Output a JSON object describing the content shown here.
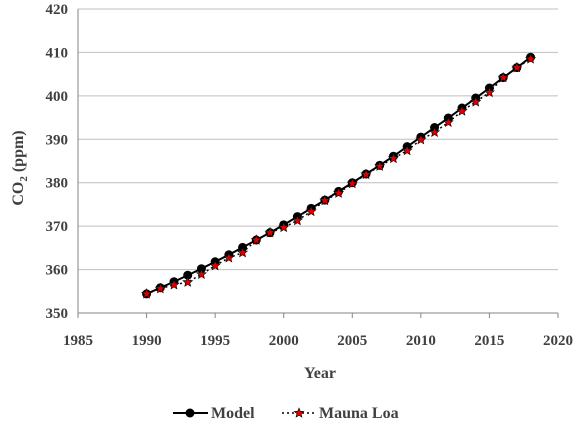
{
  "chart_data": {
    "type": "line",
    "title": "",
    "xlabel": "Year",
    "ylabel": "CO",
    "ylabel_sub": "2",
    "ylabel_tail": " (ppm)",
    "xlim": [
      1985,
      2020
    ],
    "ylim": [
      350,
      420
    ],
    "x_ticks": [
      1985,
      1990,
      1995,
      2000,
      2005,
      2010,
      2015,
      2020
    ],
    "y_ticks": [
      350,
      360,
      370,
      380,
      390,
      400,
      410,
      420
    ],
    "grid": "horizontal",
    "legend_position": "bottom",
    "series": [
      {
        "name": "Model",
        "line_style": "solid",
        "line_color": "#000000",
        "marker": "circle",
        "marker_color": "#000000",
        "x": [
          1990,
          1991,
          1992,
          1993,
          1994,
          1995,
          1996,
          1997,
          1998,
          1999,
          2000,
          2001,
          2002,
          2003,
          2004,
          2005,
          2006,
          2007,
          2008,
          2009,
          2010,
          2011,
          2012,
          2013,
          2014,
          2015,
          2016,
          2017,
          2018
        ],
        "values": [
          354.4,
          355.8,
          357.2,
          358.7,
          360.2,
          361.8,
          363.4,
          365.1,
          366.8,
          368.5,
          370.3,
          372.2,
          374.1,
          376.0,
          378.0,
          380.0,
          382.0,
          384.0,
          386.1,
          388.3,
          390.5,
          392.7,
          394.9,
          397.2,
          399.5,
          401.8,
          404.2,
          406.5,
          408.9
        ]
      },
      {
        "name": "Mauna Loa",
        "line_style": "dotted",
        "line_color": "#000000",
        "marker": "star",
        "marker_color": "#dd0000",
        "x": [
          1990,
          1991,
          1992,
          1993,
          1994,
          1995,
          1996,
          1997,
          1998,
          1999,
          2000,
          2001,
          2002,
          2003,
          2004,
          2005,
          2006,
          2007,
          2008,
          2009,
          2010,
          2011,
          2012,
          2013,
          2014,
          2015,
          2016,
          2017,
          2018
        ],
        "values": [
          354.4,
          355.6,
          356.5,
          357.1,
          358.9,
          360.9,
          362.7,
          363.9,
          366.8,
          368.5,
          369.7,
          371.3,
          373.4,
          375.9,
          377.6,
          379.8,
          381.9,
          383.8,
          385.6,
          387.4,
          389.9,
          391.6,
          393.9,
          396.5,
          398.6,
          400.8,
          404.2,
          406.5,
          408.5
        ]
      }
    ]
  }
}
